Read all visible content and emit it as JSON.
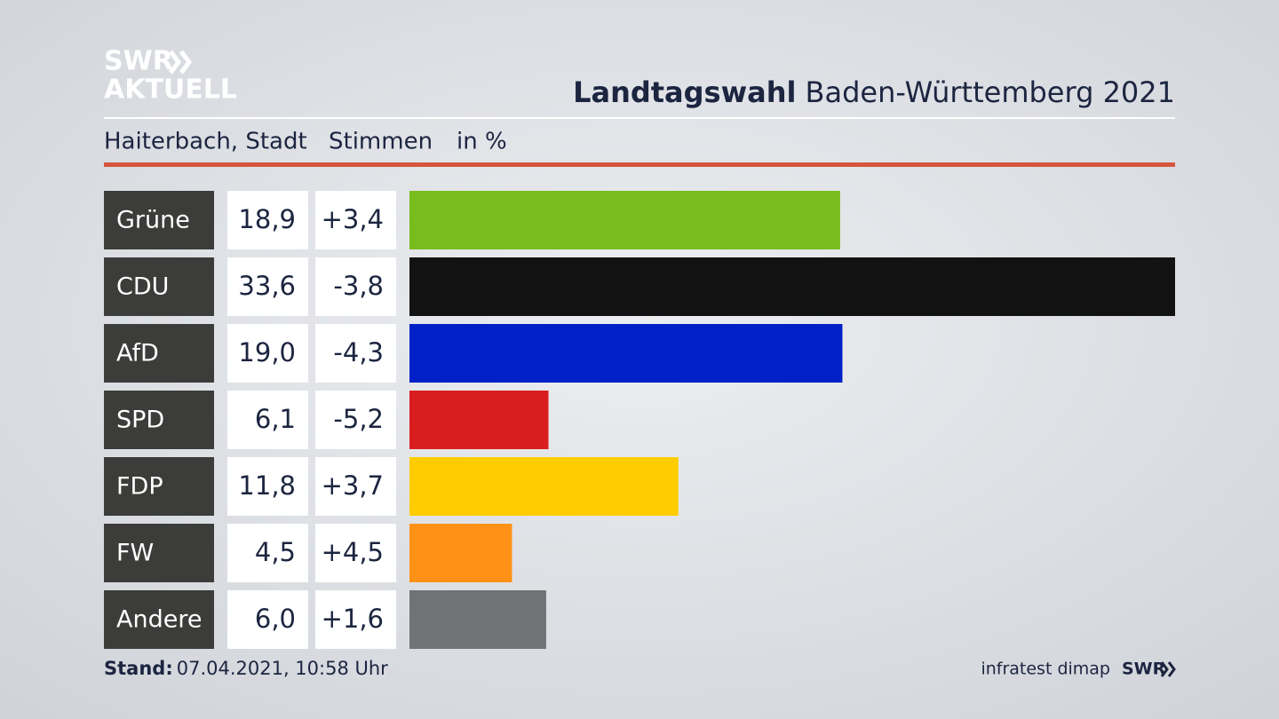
{
  "logo": {
    "line1": "SWR",
    "line2": "AKTUELL"
  },
  "footer": {
    "stand_label": "Stand:",
    "stand_value": "07.04.2021, 10:58 Uhr",
    "source": "infratest dimap",
    "brand": "SWR"
  },
  "chart_data": {
    "type": "bar",
    "orientation": "horizontal",
    "title": "Landtagswahl",
    "subtitle": "Baden-Württemberg 2021",
    "location": "Haiterbach, Stadt",
    "measure": "Stimmen",
    "unit": "in %",
    "categories": [
      "Grüne",
      "CDU",
      "AfD",
      "SPD",
      "FDP",
      "FW",
      "Andere"
    ],
    "values": [
      18.9,
      33.6,
      19.0,
      6.1,
      11.8,
      4.5,
      6.0
    ],
    "value_labels": [
      "18,9",
      "33,6",
      "19,0",
      "6,1",
      "11,8",
      "4,5",
      "6,0"
    ],
    "changes": [
      3.4,
      -3.8,
      -4.3,
      -5.2,
      3.7,
      4.5,
      1.6
    ],
    "change_labels": [
      "+3,4",
      "-3,8",
      "-4,3",
      "-5,2",
      "+3,7",
      "+4,5",
      "+1,6"
    ],
    "colors": [
      "#78bc1e",
      "#121212",
      "#0020c8",
      "#d81e1e",
      "#ffcc00",
      "#ff9116",
      "#717274"
    ]
  }
}
